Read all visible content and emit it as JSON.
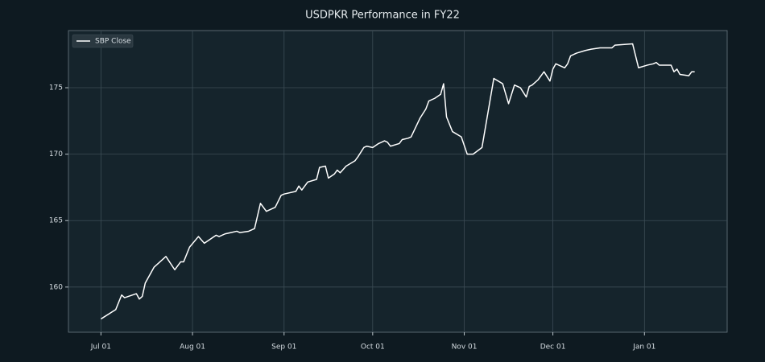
{
  "chart_data": {
    "type": "line",
    "title": "USDPKR Performance in FY22",
    "x": [
      "Jul 01",
      "Jul 06",
      "Jul 08",
      "Jul 09",
      "Jul 13",
      "Jul 14",
      "Jul 15",
      "Jul 16",
      "Jul 19",
      "Jul 23",
      "Jul 26",
      "Jul 28",
      "Jul 29",
      "Jul 31",
      "Aug 03",
      "Aug 05",
      "Aug 09",
      "Aug 10",
      "Aug 12",
      "Aug 14",
      "Aug 16",
      "Aug 17",
      "Aug 20",
      "Aug 22",
      "Aug 24",
      "Aug 26",
      "Aug 29",
      "Aug 31",
      "Sep 01",
      "Sep 05",
      "Sep 06",
      "Sep 07",
      "Sep 09",
      "Sep 12",
      "Sep 13",
      "Sep 15",
      "Sep 16",
      "Sep 18",
      "Sep 19",
      "Sep 20",
      "Sep 22",
      "Sep 25",
      "Sep 26",
      "Sep 28",
      "Sep 29",
      "Oct 01",
      "Oct 03",
      "Oct 04",
      "Oct 05",
      "Oct 06",
      "Oct 07",
      "Oct 10",
      "Oct 11",
      "Oct 13",
      "Oct 14",
      "Oct 17",
      "Oct 19",
      "Oct 20",
      "Oct 22",
      "Oct 24",
      "Oct 25",
      "Oct 26",
      "Oct 28",
      "Oct 31",
      "Nov 02",
      "Nov 04",
      "Nov 07",
      "Nov 11",
      "Nov 14",
      "Nov 16",
      "Nov 18",
      "Nov 20",
      "Nov 22",
      "Nov 23",
      "Nov 24",
      "Nov 26",
      "Nov 28",
      "Nov 30",
      "Dec 01",
      "Dec 02",
      "Dec 05",
      "Dec 06",
      "Dec 07",
      "Dec 09",
      "Dec 12",
      "Dec 14",
      "Dec 17",
      "Dec 21",
      "Dec 22",
      "Dec 28",
      "Dec 30",
      "Jan 02",
      "Jan 04",
      "Jan 05",
      "Jan 06",
      "Jan 10",
      "Jan 11",
      "Jan 12",
      "Jan 13",
      "Jan 16",
      "Jan 17",
      "Jan 18"
    ],
    "series": [
      {
        "name": "SBP Close",
        "color": "#ffffff",
        "values": [
          157.6,
          158.3,
          159.4,
          159.2,
          159.5,
          159.1,
          159.3,
          160.3,
          161.5,
          162.3,
          161.3,
          161.9,
          161.9,
          163.0,
          163.8,
          163.3,
          163.9,
          163.8,
          164.0,
          164.1,
          164.2,
          164.1,
          164.2,
          164.4,
          166.3,
          165.7,
          166.0,
          166.9,
          167.0,
          167.2,
          167.6,
          167.3,
          167.9,
          168.1,
          169.0,
          169.1,
          168.2,
          168.5,
          168.8,
          168.6,
          169.1,
          169.5,
          169.8,
          170.5,
          170.6,
          170.5,
          170.8,
          170.9,
          171.0,
          170.9,
          170.6,
          170.8,
          171.1,
          171.2,
          171.3,
          172.7,
          173.4,
          174.0,
          174.2,
          174.5,
          175.3,
          172.8,
          171.7,
          171.3,
          170.0,
          170.0,
          170.5,
          175.7,
          175.3,
          173.8,
          175.2,
          175.0,
          174.3,
          175.1,
          175.2,
          175.6,
          176.2,
          175.5,
          176.4,
          176.8,
          176.5,
          176.8,
          177.4,
          177.6,
          177.8,
          177.9,
          178.0,
          178.0,
          178.2,
          178.3,
          176.5,
          176.7,
          176.8,
          176.9,
          176.7,
          176.7,
          176.2,
          176.4,
          176.0,
          175.9,
          176.2,
          176.2
        ]
      }
    ],
    "xlim": [
      "Jun 20",
      "Jan 29"
    ],
    "xticks": [
      "Jul 01",
      "Aug 01",
      "Sep 01",
      "Oct 01",
      "Nov 01",
      "Dec 01",
      "Jan 01"
    ],
    "ylim": [
      156.6,
      179.3
    ],
    "yticks": [
      160,
      165,
      170,
      175
    ],
    "grid": true,
    "legend": "upper left"
  }
}
